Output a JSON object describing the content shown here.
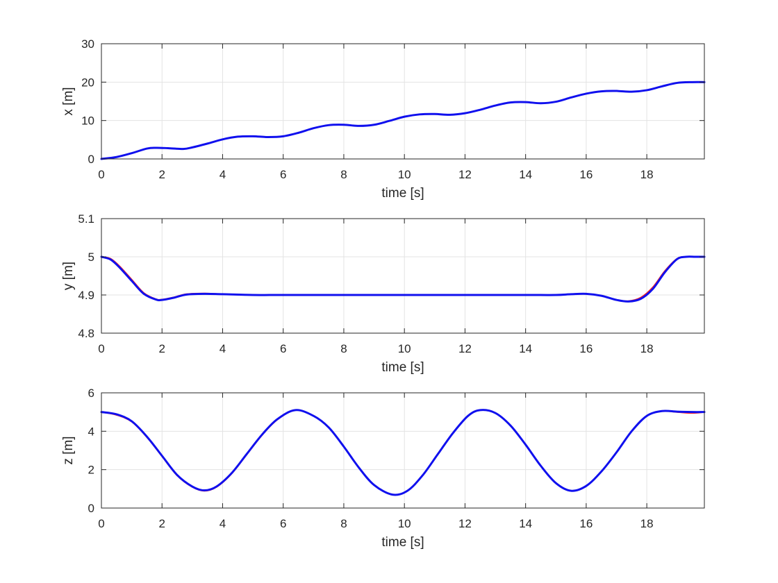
{
  "colors": {
    "reference_line": "#ff2020",
    "actual_line": "#1010ee",
    "grid": "#e3e3e3",
    "axis": "#262626"
  },
  "chart_data": [
    {
      "type": "line",
      "xlabel": "time [s]",
      "ylabel": "x [m]",
      "xlim": [
        0,
        19.9
      ],
      "ylim": [
        0,
        30
      ],
      "xticks": [
        0,
        2,
        4,
        6,
        8,
        10,
        12,
        14,
        16,
        18
      ],
      "xtick_labels": [
        "0",
        "2",
        "4",
        "6",
        "8",
        "10",
        "12",
        "14",
        "16",
        "18"
      ],
      "yticks": [
        0,
        10,
        20,
        30
      ],
      "ytick_labels": [
        "0",
        "10",
        "20",
        "30"
      ],
      "grid": true,
      "x": [
        0,
        0.5,
        1.0,
        1.5,
        1.8,
        2.2,
        2.7,
        3.0,
        3.5,
        4.0,
        4.5,
        5.0,
        5.5,
        6.0,
        6.5,
        7.0,
        7.5,
        8.0,
        8.5,
        9.0,
        9.5,
        10.0,
        10.5,
        11.0,
        11.5,
        12.0,
        12.5,
        13.0,
        13.5,
        14.0,
        14.5,
        15.0,
        15.5,
        16.0,
        16.5,
        17.0,
        17.5,
        18.0,
        18.5,
        19.0,
        19.5,
        19.9
      ],
      "series": [
        {
          "color_key": "reference_line",
          "values": [
            0,
            0.5,
            1.5,
            2.7,
            2.9,
            2.8,
            2.6,
            3.0,
            4.0,
            5.1,
            5.8,
            5.9,
            5.7,
            5.9,
            6.8,
            8.0,
            8.8,
            8.9,
            8.6,
            8.9,
            9.9,
            11.0,
            11.6,
            11.7,
            11.5,
            11.9,
            12.8,
            13.9,
            14.7,
            14.8,
            14.5,
            14.9,
            16.0,
            17.0,
            17.6,
            17.7,
            17.5,
            17.9,
            18.9,
            19.8,
            20.0,
            20.0
          ]
        },
        {
          "color_key": "actual_line",
          "values": [
            0,
            0.5,
            1.5,
            2.7,
            2.9,
            2.8,
            2.6,
            3.0,
            4.0,
            5.1,
            5.8,
            5.9,
            5.7,
            5.9,
            6.8,
            8.0,
            8.8,
            8.9,
            8.6,
            8.9,
            9.9,
            11.0,
            11.6,
            11.7,
            11.5,
            11.9,
            12.8,
            13.9,
            14.7,
            14.8,
            14.5,
            14.9,
            16.0,
            17.0,
            17.6,
            17.7,
            17.5,
            17.9,
            18.9,
            19.8,
            20.0,
            20.0
          ]
        }
      ]
    },
    {
      "type": "line",
      "xlabel": "time [s]",
      "ylabel": "y [m]",
      "xlim": [
        0,
        19.9
      ],
      "ylim": [
        4.8,
        5.1
      ],
      "xticks": [
        0,
        2,
        4,
        6,
        8,
        10,
        12,
        14,
        16,
        18
      ],
      "xtick_labels": [
        "0",
        "2",
        "4",
        "6",
        "8",
        "10",
        "12",
        "14",
        "16",
        "18"
      ],
      "yticks": [
        4.8,
        4.9,
        5.0,
        5.1
      ],
      "ytick_labels": [
        "4.8",
        "4.9",
        "5",
        "5.1"
      ],
      "grid": true,
      "x": [
        0,
        0.3,
        0.6,
        1.0,
        1.4,
        1.8,
        2.0,
        2.4,
        2.8,
        3.4,
        4.0,
        5.0,
        6.0,
        8.0,
        10.0,
        12.0,
        14.0,
        15.0,
        15.5,
        16.0,
        16.5,
        17.0,
        17.4,
        17.8,
        18.2,
        18.6,
        19.0,
        19.3,
        19.6,
        19.9
      ],
      "series": [
        {
          "color_key": "reference_line",
          "values": [
            5.0,
            4.995,
            4.975,
            4.94,
            4.905,
            4.889,
            4.888,
            4.894,
            4.902,
            4.904,
            4.902,
            4.9,
            4.9,
            4.9,
            4.9,
            4.9,
            4.9,
            4.9,
            4.902,
            4.903,
            4.898,
            4.887,
            4.884,
            4.893,
            4.92,
            4.963,
            4.995,
            5.0,
            5.0,
            5.0
          ]
        },
        {
          "color_key": "actual_line",
          "values": [
            5.0,
            4.993,
            4.972,
            4.937,
            4.903,
            4.888,
            4.887,
            4.893,
            4.901,
            4.903,
            4.902,
            4.9,
            4.9,
            4.9,
            4.9,
            4.9,
            4.9,
            4.9,
            4.902,
            4.903,
            4.898,
            4.887,
            4.883,
            4.89,
            4.916,
            4.96,
            4.994,
            5.0,
            5.0,
            5.0
          ]
        }
      ]
    },
    {
      "type": "line",
      "xlabel": "time [s]",
      "ylabel": "z [m]",
      "xlim": [
        0,
        19.9
      ],
      "ylim": [
        0,
        6
      ],
      "xticks": [
        0,
        2,
        4,
        6,
        8,
        10,
        12,
        14,
        16,
        18
      ],
      "xtick_labels": [
        "0",
        "2",
        "4",
        "6",
        "8",
        "10",
        "12",
        "14",
        "16",
        "18"
      ],
      "yticks": [
        0,
        2,
        4,
        6
      ],
      "ytick_labels": [
        "0",
        "2",
        "4",
        "6"
      ],
      "grid": true,
      "x": [
        0,
        0.5,
        1.0,
        1.5,
        2.0,
        2.5,
        3.0,
        3.4,
        3.8,
        4.3,
        4.8,
        5.3,
        5.8,
        6.4,
        7.0,
        7.5,
        8.0,
        8.5,
        9.0,
        9.6,
        10.1,
        10.6,
        11.1,
        11.6,
        12.1,
        12.5,
        13.0,
        13.5,
        14.0,
        14.5,
        15.0,
        15.5,
        16.0,
        16.5,
        17.0,
        17.5,
        18.0,
        18.5,
        19.0,
        19.5,
        19.9
      ],
      "series": [
        {
          "color_key": "reference_line",
          "values": [
            5.0,
            4.85,
            4.5,
            3.7,
            2.7,
            1.7,
            1.1,
            0.9,
            1.1,
            1.8,
            2.8,
            3.8,
            4.6,
            5.1,
            4.8,
            4.2,
            3.2,
            2.1,
            1.2,
            0.7,
            0.9,
            1.7,
            2.8,
            3.9,
            4.8,
            5.1,
            4.95,
            4.3,
            3.3,
            2.2,
            1.3,
            0.9,
            1.15,
            1.9,
            2.9,
            4.0,
            4.8,
            5.05,
            5.0,
            4.95,
            5.0
          ]
        },
        {
          "color_key": "actual_line",
          "values": [
            5.0,
            4.88,
            4.52,
            3.72,
            2.72,
            1.72,
            1.12,
            0.92,
            1.12,
            1.82,
            2.82,
            3.82,
            4.62,
            5.1,
            4.8,
            4.2,
            3.2,
            2.1,
            1.2,
            0.7,
            0.9,
            1.7,
            2.8,
            3.9,
            4.8,
            5.1,
            4.95,
            4.3,
            3.3,
            2.2,
            1.3,
            0.9,
            1.15,
            1.9,
            2.9,
            4.0,
            4.8,
            5.05,
            5.02,
            5.0,
            5.0
          ]
        }
      ]
    }
  ]
}
